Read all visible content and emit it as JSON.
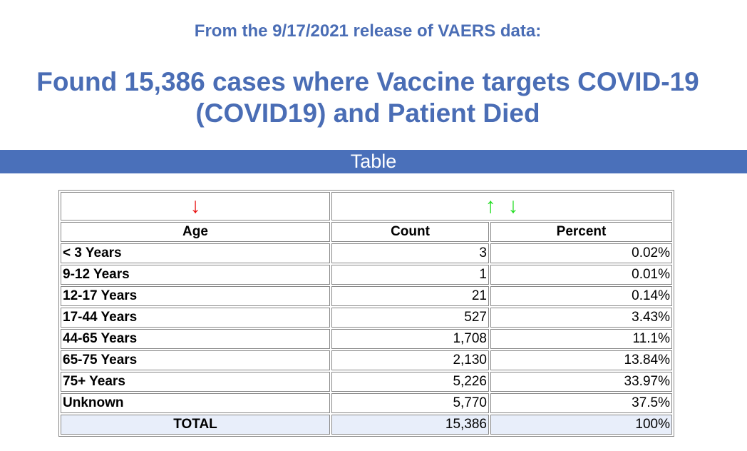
{
  "subtitle": "From the 9/17/2021 release of VAERS data:",
  "title": "Found 15,386 cases where Vaccine targets COVID-19 (COVID19) and Patient Died",
  "section_bar": "Table",
  "colors": {
    "accent": "#4a6db5",
    "bar": "#4a70ba",
    "sort_active": "#e81010",
    "sort_inactive": "#22dd22",
    "total_bg": "#e8eefa"
  },
  "sort_icons": {
    "age": "↓",
    "count_up": "↑",
    "count_down": "↓"
  },
  "table": {
    "headers": [
      "Age",
      "Count",
      "Percent"
    ],
    "rows": [
      {
        "age": "< 3 Years",
        "count": "3",
        "percent": "0.02%"
      },
      {
        "age": "9-12 Years",
        "count": "1",
        "percent": "0.01%"
      },
      {
        "age": "12-17 Years",
        "count": "21",
        "percent": "0.14%"
      },
      {
        "age": "17-44 Years",
        "count": "527",
        "percent": "3.43%"
      },
      {
        "age": "44-65 Years",
        "count": "1,708",
        "percent": "11.1%"
      },
      {
        "age": "65-75 Years",
        "count": "2,130",
        "percent": "13.84%"
      },
      {
        "age": "75+ Years",
        "count": "5,226",
        "percent": "33.97%"
      },
      {
        "age": "Unknown",
        "count": "5,770",
        "percent": "37.5%"
      }
    ],
    "total": {
      "label": "TOTAL",
      "count": "15,386",
      "percent": "100%"
    }
  }
}
